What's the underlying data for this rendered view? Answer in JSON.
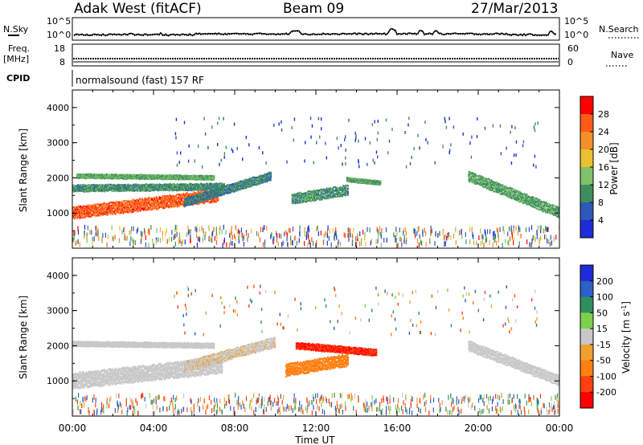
{
  "header": {
    "station": "Adak West (fitACF)",
    "beam": "Beam 09",
    "date": "27/Mar/2013"
  },
  "top_panels": {
    "nsky_label": "N.Sky",
    "nsearch_label": "N.Search",
    "noise_ticks": [
      "10^5",
      "10^0"
    ],
    "freq_label": "Freq.",
    "freq_unit": "[MHz]",
    "freq_ticks": [
      "18",
      "8"
    ],
    "nave_label": "Nave",
    "nave_ticks": [
      "60",
      "0"
    ],
    "cpid_label": "CPID",
    "cpid_text": "normalsound (fast) 157 RF"
  },
  "x_axis": {
    "label": "Time UT",
    "ticks": [
      "00:00",
      "04:00",
      "08:00",
      "12:00",
      "16:00",
      "20:00",
      "00:00"
    ]
  },
  "colors": {
    "power_scale": [
      "#1e2bd6",
      "#2f58b8",
      "#3f8f5e",
      "#7fc26a",
      "#e8c233",
      "#f2902a",
      "#ff5a1a",
      "#ff0000"
    ],
    "velocity_scale": [
      "#ff0000",
      "#ff4010",
      "#ff7f10",
      "#f0a030",
      "#c8c8c8",
      "#7fcf4f",
      "#2f8f5f",
      "#2f5fc8",
      "#1e2bd6"
    ]
  },
  "chart_data": [
    {
      "type": "heatmap",
      "name": "Power",
      "xlabel": "Time UT",
      "ylabel": "Slant Range [km]",
      "xlim": [
        0,
        24
      ],
      "ylim": [
        0,
        4500
      ],
      "yticks": [
        1000,
        2000,
        3000,
        4000
      ],
      "colorbar": {
        "label": "Power [dB]",
        "ticks": [
          4,
          8,
          12,
          16,
          20,
          24,
          28
        ],
        "range": [
          0,
          32
        ]
      },
      "bands": [
        {
          "t0": 0.0,
          "t1": 7.2,
          "r_start": 1000,
          "r_end": 1500,
          "width": 350,
          "value": 26
        },
        {
          "t0": 0.0,
          "t1": 7.5,
          "r_start": 1700,
          "r_end": 1750,
          "width": 200,
          "value": 10
        },
        {
          "t0": 0.2,
          "t1": 7.0,
          "r_start": 2050,
          "r_end": 2000,
          "width": 130,
          "value": 12
        },
        {
          "t0": 5.5,
          "t1": 9.8,
          "r_start": 1300,
          "r_end": 2050,
          "width": 250,
          "value": 9
        },
        {
          "t0": 10.8,
          "t1": 13.6,
          "r_start": 1400,
          "r_end": 1650,
          "width": 300,
          "value": 10
        },
        {
          "t0": 13.5,
          "t1": 15.2,
          "r_start": 1950,
          "r_end": 1850,
          "width": 120,
          "value": 11
        },
        {
          "t0": 19.5,
          "t1": 24.0,
          "r_start": 2050,
          "r_end": 1000,
          "width": 300,
          "value": 11
        }
      ]
    },
    {
      "type": "heatmap",
      "name": "Velocity",
      "xlabel": "Time UT",
      "ylabel": "Slant Range [km]",
      "xlim": [
        0,
        24
      ],
      "ylim": [
        0,
        4500
      ],
      "yticks": [
        1000,
        2000,
        3000,
        4000
      ],
      "colorbar": {
        "label": "Velocity [m s^-1]",
        "ticks": [
          200,
          100,
          50,
          15,
          -15,
          -50,
          -100,
          -200
        ]
      },
      "bands": [
        {
          "t0": 0.0,
          "t1": 7.4,
          "r_start": 1000,
          "r_end": 1450,
          "width": 450,
          "value": 0
        },
        {
          "t0": 0.0,
          "t1": 7.0,
          "r_start": 2050,
          "r_end": 2000,
          "width": 150,
          "value": 0
        },
        {
          "t0": 5.5,
          "t1": 10.0,
          "r_start": 1400,
          "r_end": 2100,
          "width": 300,
          "value": -10
        },
        {
          "t0": 10.5,
          "t1": 13.6,
          "r_start": 1300,
          "r_end": 1600,
          "width": 350,
          "value": -80
        },
        {
          "t0": 11.0,
          "t1": 15.0,
          "r_start": 2000,
          "r_end": 1800,
          "width": 200,
          "value": -200
        },
        {
          "t0": 19.5,
          "t1": 24.0,
          "r_start": 2000,
          "r_end": 1000,
          "width": 300,
          "value": 0
        }
      ]
    }
  ]
}
